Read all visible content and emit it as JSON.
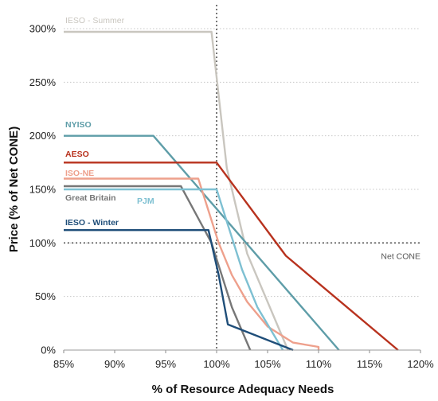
{
  "chart_data": {
    "type": "line",
    "title": "",
    "xlabel": "% of Resource Adequacy Needs",
    "ylabel": "Price (% of Net CONE)",
    "xlim": [
      85,
      120
    ],
    "ylim": [
      0,
      300
    ],
    "x_ticks": [
      "85%",
      "90%",
      "95%",
      "100%",
      "105%",
      "110%",
      "115%",
      "120%"
    ],
    "y_ticks": [
      "0%",
      "50%",
      "100%",
      "150%",
      "200%",
      "250%",
      "300%"
    ],
    "grid": "horizontal-dotted",
    "reference_lines": [
      {
        "axis": "x",
        "value": 100,
        "style": "dotted"
      },
      {
        "axis": "y",
        "value": 100,
        "style": "dotted",
        "label": "Net CONE"
      }
    ],
    "series": [
      {
        "name": "IESO - Summer",
        "color": "#c9c6bf",
        "points": [
          [
            85,
            297
          ],
          [
            99.5,
            297
          ],
          [
            101,
            170
          ],
          [
            103,
            90
          ],
          [
            107,
            0
          ]
        ]
      },
      {
        "name": "NYISO",
        "color": "#5e9da8",
        "points": [
          [
            85,
            200
          ],
          [
            93.8,
            200
          ],
          [
            112,
            0
          ]
        ]
      },
      {
        "name": "AESO",
        "color": "#b8321e",
        "points": [
          [
            85,
            175
          ],
          [
            100,
            175
          ],
          [
            106.8,
            88
          ],
          [
            117.8,
            0
          ]
        ]
      },
      {
        "name": "ISO-NE",
        "color": "#eea08c",
        "points": [
          [
            85,
            160
          ],
          [
            98.2,
            160
          ],
          [
            99.2,
            130
          ],
          [
            100.2,
            100
          ],
          [
            101.5,
            70
          ],
          [
            103,
            45
          ],
          [
            105,
            22
          ],
          [
            107.5,
            7
          ],
          [
            110,
            3
          ],
          [
            110,
            0
          ]
        ]
      },
      {
        "name": "Great Britain",
        "color": "#777777",
        "points": [
          [
            85,
            153
          ],
          [
            96.5,
            153
          ],
          [
            99.5,
            100
          ],
          [
            101.5,
            40
          ],
          [
            103.3,
            0
          ]
        ]
      },
      {
        "name": "PJM",
        "color": "#7ec0d2",
        "points": [
          [
            85,
            150
          ],
          [
            100,
            150
          ],
          [
            102.5,
            75
          ],
          [
            104,
            40
          ],
          [
            106.5,
            0
          ]
        ]
      },
      {
        "name": "IESO - Winter",
        "color": "#1f4e79",
        "points": [
          [
            85,
            112
          ],
          [
            99.2,
            112
          ],
          [
            100.2,
            70
          ],
          [
            101.1,
            24
          ],
          [
            107.5,
            0
          ]
        ]
      }
    ]
  }
}
